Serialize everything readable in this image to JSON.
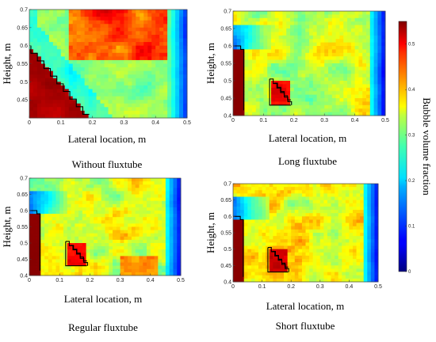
{
  "colorbar": {
    "label": "Bubble volume fraction",
    "min": 0,
    "max": 0.55,
    "ticks": [
      "0",
      "0.1",
      "0.2",
      "0.3",
      "0.4",
      "0.5"
    ],
    "tick_values": [
      0,
      0.1,
      0.2,
      0.3,
      0.4,
      0.5
    ],
    "colormap": "jet"
  },
  "chart_data": [
    {
      "type": "heatmap",
      "caption": "Without fluxtube",
      "xlabel": "Lateral location, m",
      "ylabel": "Height, m",
      "xlim": [
        0,
        0.5
      ],
      "ylim": [
        0.4,
        0.7
      ],
      "xticks": [
        "0",
        "0.1",
        "0.2",
        "0.3",
        "0.4",
        "0.5"
      ],
      "yticks": [
        "0.45",
        "0.5",
        "0.55",
        "0.6",
        "0.65",
        "0.7"
      ],
      "base_value": 0.28,
      "features": [
        {
          "kind": "band",
          "value": 0.2,
          "desc": "diagonal low band"
        },
        {
          "kind": "region",
          "value": 0.5,
          "desc": "upper-right high"
        },
        {
          "kind": "region",
          "value": 0.55,
          "desc": "lower-left stepped high"
        }
      ]
    },
    {
      "type": "heatmap",
      "caption": "Long fluxtube",
      "xlabel": "Lateral location, m",
      "ylabel": "Height, m",
      "xlim": [
        0,
        0.5
      ],
      "ylim": [
        0.4,
        0.7
      ],
      "xticks": [
        "0",
        "0.1",
        "0.2",
        "0.3",
        "0.4",
        "0.5"
      ],
      "yticks": [
        "0.4",
        "0.45",
        "0.5",
        "0.55",
        "0.6",
        "0.65",
        "0.7"
      ],
      "base_value": 0.3
    },
    {
      "type": "heatmap",
      "caption": "Regular fluxtube",
      "xlabel": "Lateral location, m",
      "ylabel": "Height, m",
      "xlim": [
        0,
        0.5
      ],
      "ylim": [
        0.4,
        0.7
      ],
      "xticks": [
        "0",
        "0.1",
        "0.2",
        "0.3",
        "0.4",
        "0.5"
      ],
      "yticks": [
        "0.4",
        "0.45",
        "0.5",
        "0.55",
        "0.6",
        "0.65",
        "0.7"
      ],
      "base_value": 0.3
    },
    {
      "type": "heatmap",
      "caption": "Short fluxtube",
      "xlabel": "Lateral location, m",
      "ylabel": "Height, m",
      "xlim": [
        0,
        0.5
      ],
      "ylim": [
        0.4,
        0.7
      ],
      "xticks": [
        "0",
        "0.1",
        "0.2",
        "0.3",
        "0.4",
        "0.5"
      ],
      "yticks": [
        "0.4",
        "0.45",
        "0.5",
        "0.55",
        "0.6",
        "0.65",
        "0.7"
      ],
      "base_value": 0.32
    }
  ]
}
